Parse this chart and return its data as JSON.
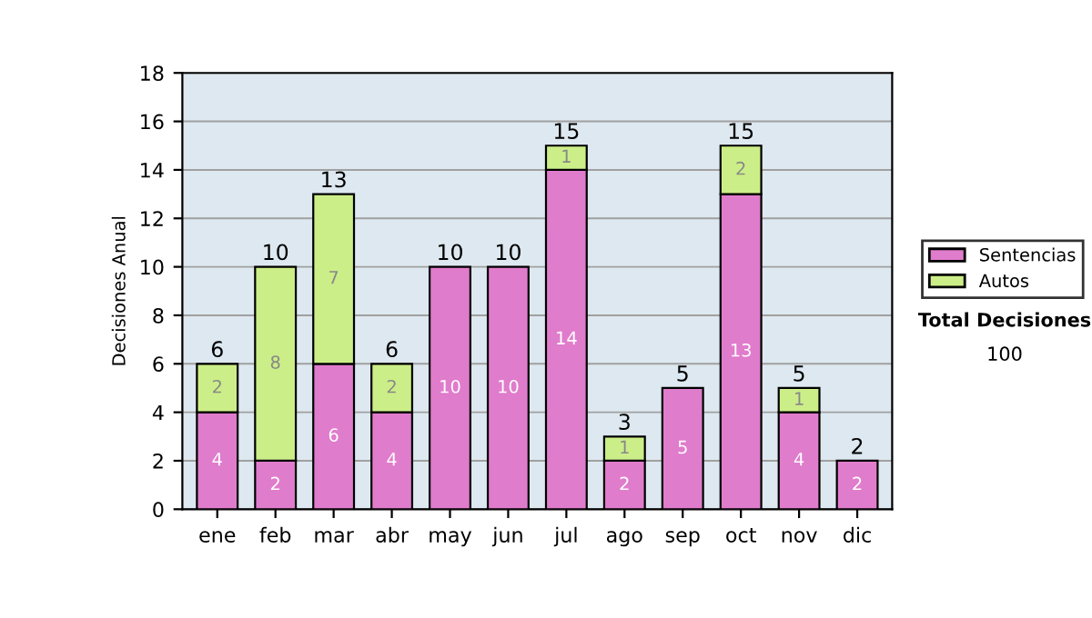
{
  "chart_data": {
    "type": "bar",
    "stacked": true,
    "ylabel": "Decisiones Anual",
    "categories": [
      "ene",
      "feb",
      "mar",
      "abr",
      "may",
      "jun",
      "jul",
      "ago",
      "sep",
      "oct",
      "nov",
      "dic"
    ],
    "series": [
      {
        "name": "Sentencias",
        "color": "#e07ccc",
        "values": [
          4,
          2,
          6,
          4,
          10,
          10,
          14,
          2,
          5,
          13,
          4,
          2
        ],
        "value_labels": [
          "4",
          "2",
          "6",
          "4",
          "10",
          "10",
          "14",
          "2",
          "5",
          "13",
          "4",
          "2"
        ]
      },
      {
        "name": "Autos",
        "color": "#ccee88",
        "values": [
          2,
          8,
          7,
          2,
          null,
          null,
          1,
          1,
          null,
          2,
          1,
          null
        ],
        "value_labels": [
          "2",
          "8",
          "7",
          "2",
          null,
          null,
          "1",
          "1",
          null,
          "2",
          "1",
          null
        ]
      }
    ],
    "totals": [
      "6",
      "10",
      "13",
      "6",
      "10",
      "10",
      "15",
      "3",
      "5",
      "15",
      "5",
      "2"
    ],
    "ylim": [
      0,
      18
    ],
    "yticks": [
      0,
      2,
      4,
      6,
      8,
      10,
      12,
      14,
      16,
      18
    ],
    "grid": "y",
    "legend": "right",
    "annotations": [
      "Total Decisiones",
      "100"
    ]
  }
}
